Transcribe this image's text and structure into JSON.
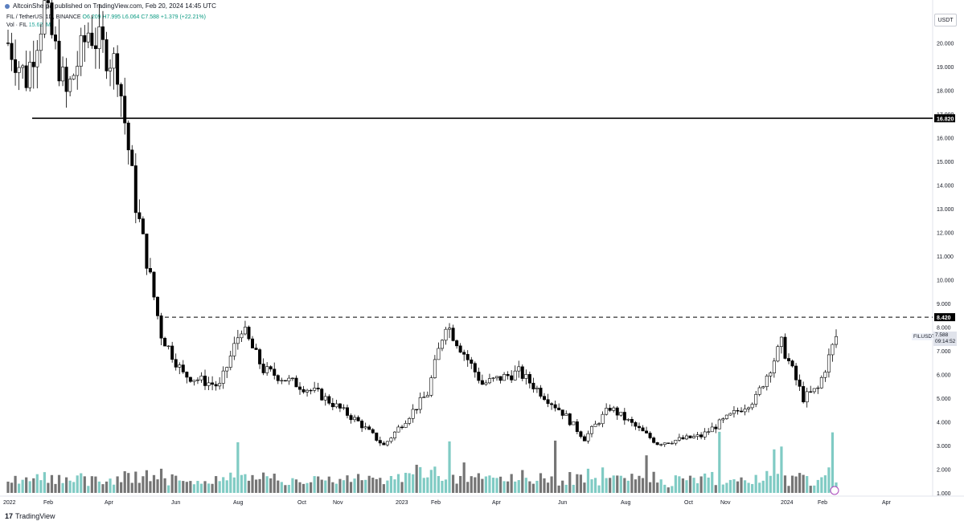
{
  "publisher": "AltcoinSherpa published on TradingView.com, Feb 20, 2024 14:45 UTC",
  "legend": {
    "symbol": "FIL / TetherUS, 1D, BINANCE",
    "open": "O6.209",
    "high": "H7.995",
    "low": "L6.064",
    "close": "C7.588",
    "change": "+1.379 (+22.21%)",
    "volume_label": "Vol · FIL",
    "volume_value": "15.626M"
  },
  "currency_badge": "USDT",
  "last_price": {
    "symbol": "FILUSDT",
    "price": "7.588",
    "countdown": "09:14:52"
  },
  "footer_brand": "TradingView",
  "colors": {
    "up": "#ffffff",
    "down": "#000000",
    "vol_up": "#80cbc4",
    "vol_down": "#757575"
  },
  "chart_data": {
    "type": "candlestick",
    "y_axis_ticks": [
      "20.000",
      "19.000",
      "18.000",
      "17.000",
      "16.000",
      "15.000",
      "14.000",
      "13.000",
      "12.000",
      "11.000",
      "10.000",
      "9.000",
      "8.000",
      "7.000",
      "6.000",
      "5.000",
      "4.000",
      "3.000",
      "2.000",
      "1.000"
    ],
    "x_axis_ticks": [
      "2022",
      "Feb",
      "Apr",
      "Jun",
      "Aug",
      "Oct",
      "Nov",
      "2023",
      "Feb",
      "Apr",
      "Jun",
      "Aug",
      "Oct",
      "Nov",
      "2024",
      "Feb",
      "Apr"
    ],
    "horizontal_levels": [
      {
        "price": 16.82,
        "label": "16.820",
        "style": "solid"
      },
      {
        "price": 8.42,
        "label": "8.420",
        "style": "dashed"
      }
    ],
    "grid": false,
    "anchors": [
      {
        "t": 0,
        "p": 20.0
      },
      {
        "t": 5,
        "p": 18.5
      },
      {
        "t": 10,
        "p": 21.5
      },
      {
        "t": 16,
        "p": 17.8
      },
      {
        "t": 22,
        "p": 20.5
      },
      {
        "t": 30,
        "p": 19.0
      },
      {
        "t": 35,
        "p": 13.2
      },
      {
        "t": 42,
        "p": 7.7
      },
      {
        "t": 48,
        "p": 6.0
      },
      {
        "t": 58,
        "p": 5.5
      },
      {
        "t": 64,
        "p": 8.0
      },
      {
        "t": 70,
        "p": 6.2
      },
      {
        "t": 85,
        "p": 5.2
      },
      {
        "t": 96,
        "p": 4.0
      },
      {
        "t": 103,
        "p": 3.0
      },
      {
        "t": 115,
        "p": 5.2
      },
      {
        "t": 120,
        "p": 8.2
      },
      {
        "t": 130,
        "p": 5.6
      },
      {
        "t": 140,
        "p": 6.1
      },
      {
        "t": 152,
        "p": 4.4
      },
      {
        "t": 158,
        "p": 3.3
      },
      {
        "t": 165,
        "p": 4.6
      },
      {
        "t": 178,
        "p": 3.1
      },
      {
        "t": 190,
        "p": 3.4
      },
      {
        "t": 205,
        "p": 5.0
      },
      {
        "t": 212,
        "p": 7.3
      },
      {
        "t": 218,
        "p": 5.0
      },
      {
        "t": 222,
        "p": 5.4
      },
      {
        "t": 227,
        "p": 7.6
      }
    ]
  }
}
